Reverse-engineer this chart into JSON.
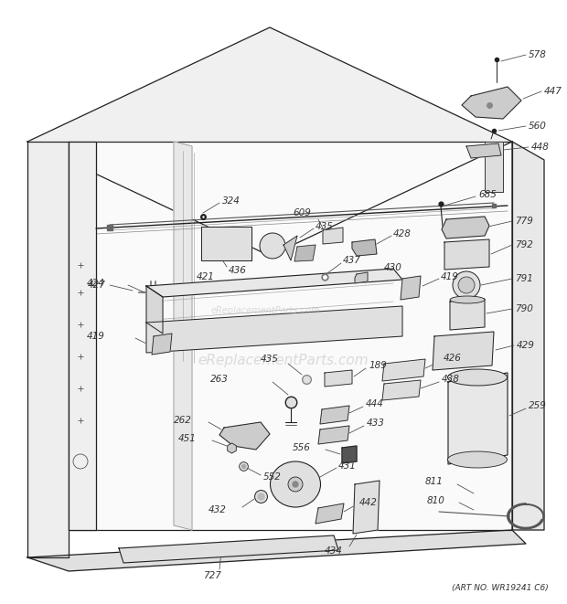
{
  "background_color": "#ffffff",
  "watermark_text": "eReplacementParts.com",
  "watermark_color": "#bbbbbb",
  "art_no_text": "(ART NO. WR19241 C6)",
  "fig_width": 6.2,
  "fig_height": 6.61,
  "line_color": "#222222",
  "label_color": "#333333"
}
